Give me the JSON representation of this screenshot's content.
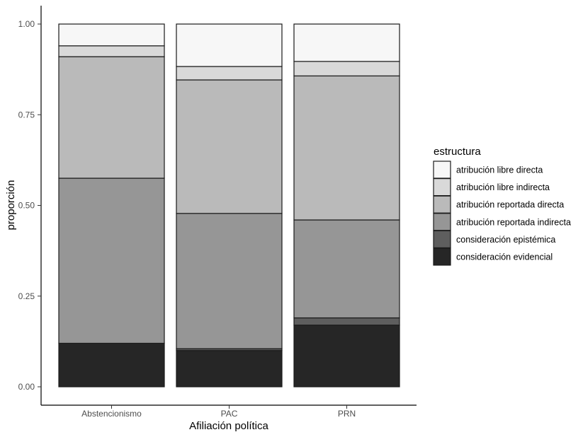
{
  "chart_data": {
    "type": "bar",
    "stacked": true,
    "xlabel": "Afiliación política",
    "ylabel": "proporción",
    "ylim": [
      0,
      1
    ],
    "yticks": [
      "0.00",
      "0.25",
      "0.50",
      "0.75",
      "1.00"
    ],
    "categories": [
      "Abstencionismo",
      "PAC",
      "PRN"
    ],
    "legend_title": "estructura",
    "legend_position": "right",
    "grid": false,
    "series": [
      {
        "name": "consideración evidencial",
        "color": "#262626",
        "values": [
          0.12,
          0.1,
          0.17
        ]
      },
      {
        "name": "consideración epistémica",
        "color": "#5e5e5e",
        "values": [
          0.0,
          0.005,
          0.02
        ]
      },
      {
        "name": "atribución reportada indirecta",
        "color": "#969696",
        "values": [
          0.455,
          0.373,
          0.27
        ]
      },
      {
        "name": "atribución reportada directa",
        "color": "#bababa",
        "values": [
          0.335,
          0.368,
          0.397
        ]
      },
      {
        "name": "atribución libre indirecta",
        "color": "#d9d9d9",
        "values": [
          0.03,
          0.037,
          0.04
        ]
      },
      {
        "name": "atribución libre directa",
        "color": "#f7f7f7",
        "values": [
          0.06,
          0.117,
          0.103
        ]
      }
    ]
  }
}
